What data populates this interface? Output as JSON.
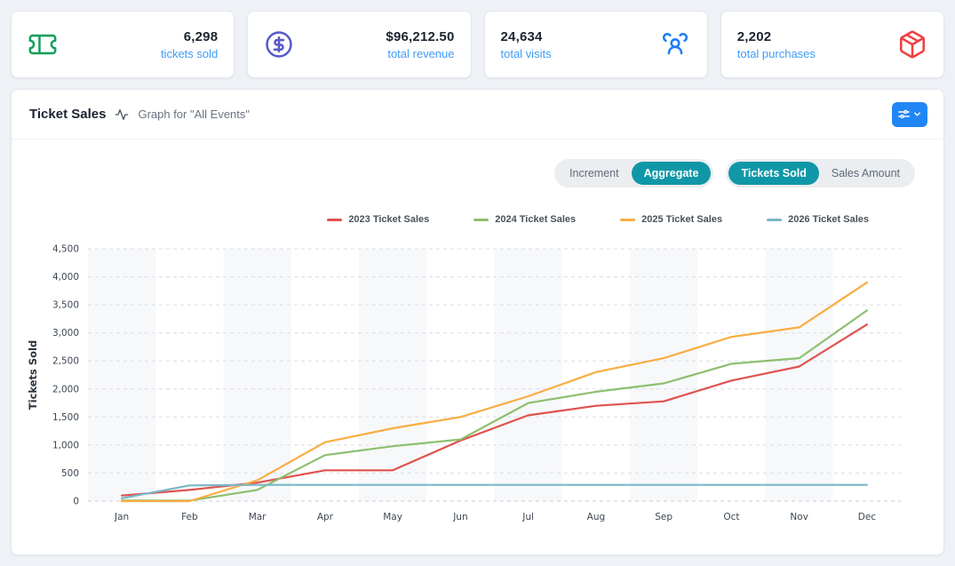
{
  "stats": [
    {
      "value": "6,298",
      "label": "tickets sold",
      "icon": "ticket-icon",
      "icon_color": "#15a05c",
      "layout": "icon-left"
    },
    {
      "value": "$96,212.50",
      "label": "total revenue",
      "icon": "dollar-circle-icon",
      "icon_color": "#575cc8",
      "layout": "icon-left"
    },
    {
      "value": "24,634",
      "label": "total visits",
      "icon": "users-icon",
      "icon_color": "#1d7ef5",
      "layout": "icon-right"
    },
    {
      "value": "2,202",
      "label": "total purchases",
      "icon": "package-icon",
      "icon_color": "#ef4043",
      "layout": "icon-right"
    }
  ],
  "panel": {
    "title": "Ticket Sales",
    "title_icon": "activity-icon",
    "subtitle": "Graph for \"All Events\"",
    "filter_button_icon": "sliders-icon",
    "filter_button_color": "#2186f5",
    "toggles": {
      "group1": {
        "options": [
          "Increment",
          "Aggregate"
        ],
        "active": "Aggregate"
      },
      "group2": {
        "options": [
          "Tickets Sold",
          "Sales Amount"
        ],
        "active": "Tickets Sold"
      }
    },
    "accent_teal": "#1097a7",
    "label_blue": "#3f9bf7"
  },
  "chart_data": {
    "type": "line",
    "title": "Ticket Sales",
    "x": [
      "Jan",
      "Feb",
      "Mar",
      "Apr",
      "May",
      "Jun",
      "Jul",
      "Aug",
      "Sep",
      "Oct",
      "Nov",
      "Dec"
    ],
    "xlabel": "",
    "ylabel": "Tickets Sold",
    "ylim": [
      0,
      4500
    ],
    "ytick_step": 500,
    "grid": "horizontal-dashed",
    "band_columns": "alternating-odd-months",
    "band_color": "#f7f8fa",
    "grid_color": "#d9dde3",
    "legend_position": "top-right",
    "series": [
      {
        "name": "2023 Ticket Sales",
        "color": "#e0524e",
        "values": [
          100,
          200,
          330,
          550,
          550,
          1080,
          1530,
          1700,
          1780,
          2150,
          2400,
          3150
        ]
      },
      {
        "name": "2024 Ticket Sales",
        "color": "#8ebf6f",
        "values": [
          10,
          10,
          200,
          820,
          980,
          1100,
          1750,
          1950,
          2100,
          2450,
          2550,
          3400
        ]
      },
      {
        "name": "2025 Ticket Sales",
        "color": "#f9ad42",
        "values": [
          0,
          0,
          370,
          1050,
          1300,
          1500,
          1870,
          2300,
          2550,
          2930,
          3100,
          3900
        ]
      },
      {
        "name": "2026 Ticket Sales",
        "color": "#79b7c6",
        "values": [
          50,
          280,
          290,
          290,
          290,
          290,
          290,
          290,
          290,
          290,
          290,
          290
        ]
      }
    ]
  }
}
